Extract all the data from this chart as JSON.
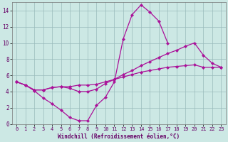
{
  "xlabel": "Windchill (Refroidissement éolien,°C)",
  "bg_color": "#cce8e4",
  "grid_color": "#99bbbb",
  "line_color": "#aa1199",
  "xlim": [
    -0.5,
    23.5
  ],
  "ylim": [
    0,
    15
  ],
  "xticks": [
    0,
    1,
    2,
    3,
    4,
    5,
    6,
    7,
    8,
    9,
    10,
    11,
    12,
    13,
    14,
    15,
    16,
    17,
    18,
    19,
    20,
    21,
    22,
    23
  ],
  "yticks": [
    0,
    2,
    4,
    6,
    8,
    10,
    12,
    14
  ],
  "series": [
    {
      "x": [
        0,
        1,
        2,
        3,
        4,
        5,
        6,
        7,
        8,
        9,
        10,
        11,
        12,
        13,
        14,
        15,
        16,
        17,
        18,
        19,
        20,
        21,
        22,
        23
      ],
      "y": [
        5.2,
        4.8,
        4.1,
        3.2,
        2.5,
        1.7,
        0.8,
        0.4,
        0.4,
        2.3,
        3.3,
        5.2,
        10.5,
        13.5,
        14.7,
        13.8,
        12.7,
        10.0,
        null,
        null,
        null,
        null,
        null,
        null
      ]
    },
    {
      "x": [
        0,
        1,
        2,
        3,
        4,
        5,
        6,
        7,
        8,
        9,
        10,
        11,
        12,
        13,
        14,
        15,
        16,
        17,
        18,
        19,
        20,
        21,
        22,
        23
      ],
      "y": [
        5.2,
        4.8,
        4.2,
        4.2,
        4.5,
        4.6,
        4.4,
        4.0,
        4.0,
        4.3,
        5.0,
        5.5,
        6.1,
        6.6,
        7.2,
        7.7,
        8.2,
        8.7,
        9.1,
        9.6,
        10.0,
        8.5,
        7.5,
        7.0
      ]
    },
    {
      "x": [
        0,
        1,
        2,
        3,
        4,
        5,
        6,
        7,
        8,
        9,
        10,
        11,
        12,
        13,
        14,
        15,
        16,
        17,
        18,
        19,
        20,
        21,
        22,
        23
      ],
      "y": [
        5.2,
        4.8,
        4.2,
        4.2,
        4.5,
        4.6,
        4.6,
        4.8,
        4.8,
        4.9,
        5.2,
        5.5,
        5.8,
        6.1,
        6.4,
        6.6,
        6.8,
        7.0,
        7.1,
        7.2,
        7.3,
        7.0,
        7.0,
        7.0
      ]
    }
  ]
}
